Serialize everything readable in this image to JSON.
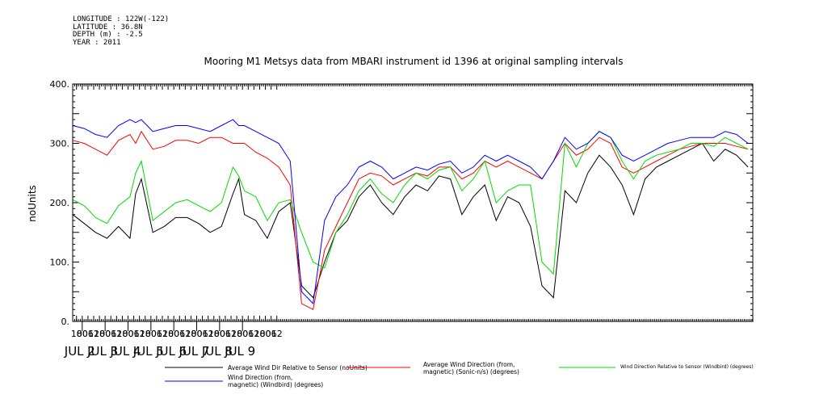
{
  "header": {
    "meta_lines": [
      "LONGITUDE : 122W(-122)",
      "LATITUDE : 36.8N",
      "DEPTH (m) : -2.5",
      "YEAR : 2011"
    ]
  },
  "chart_data": {
    "type": "line",
    "title": "Mooring M1 Metsys data from MBARI instrument id 1396 at original sampling intervals",
    "ylabel": "noUnits",
    "ylim": [
      0,
      400
    ],
    "yticks": [
      0,
      100,
      200,
      300,
      400
    ],
    "ytick_labels": [
      "0.",
      "100.",
      "200.",
      "300.",
      "400."
    ],
    "x": [
      0,
      12,
      24,
      36,
      48,
      60,
      66,
      72,
      84,
      96,
      108,
      120,
      132,
      144,
      156,
      168,
      174,
      180,
      192,
      204,
      216,
      228,
      240,
      252,
      264,
      276,
      288,
      300,
      312,
      324,
      336,
      348,
      360,
      372,
      384,
      396,
      408,
      420,
      432,
      444,
      456,
      468,
      480,
      492,
      504,
      516,
      528,
      540,
      552,
      564,
      576,
      588,
      600,
      612,
      624,
      636,
      648,
      660,
      672,
      684,
      696,
      708
    ],
    "x_units": "hours since JUL 1 14:00",
    "xlim": [
      0,
      713
    ],
    "xtick_labels": [
      "18",
      "00",
      "06",
      "12",
      "18",
      "00",
      "06",
      "12",
      "18",
      "00",
      "06",
      "12",
      "18",
      "00",
      "06",
      "12",
      "18",
      "00",
      "06",
      "12",
      "18",
      "00",
      "06",
      "12",
      "18",
      "00",
      "06",
      "12",
      "18",
      "00",
      "06",
      "12",
      "18",
      "00",
      "06",
      "12"
    ],
    "date_labels": [
      "JUL 2",
      "JUL 3",
      "JUL 4",
      "JUL 5",
      "JUL 6",
      "JUL 7",
      "JUL 8",
      "JUL 9"
    ],
    "series": [
      {
        "name": "Average Wind Dir Relative to Sensor (noUnits)",
        "color": "#000000",
        "values": [
          180,
          165,
          150,
          140,
          160,
          140,
          215,
          240,
          150,
          160,
          175,
          175,
          165,
          150,
          160,
          215,
          240,
          180,
          170,
          140,
          185,
          200,
          60,
          40,
          100,
          150,
          170,
          210,
          230,
          200,
          180,
          210,
          230,
          220,
          245,
          240,
          180,
          210,
          230,
          170,
          210,
          200,
          160,
          60,
          40,
          220,
          200,
          250,
          280,
          260,
          230,
          180,
          240,
          260,
          270,
          280,
          290,
          300,
          270,
          290,
          280,
          260
        ]
      },
      {
        "name": "Average Wind Direction (from, magnetic) (Sonic-n/s) (degrees)",
        "color": "#ff0000",
        "values": [
          305,
          300,
          290,
          280,
          305,
          315,
          300,
          320,
          290,
          295,
          305,
          305,
          300,
          310,
          310,
          300,
          300,
          300,
          285,
          275,
          260,
          230,
          30,
          20,
          120,
          160,
          200,
          240,
          250,
          245,
          230,
          240,
          250,
          245,
          260,
          260,
          240,
          250,
          270,
          260,
          270,
          260,
          250,
          240,
          270,
          300,
          280,
          290,
          310,
          300,
          260,
          250,
          260,
          270,
          280,
          290,
          295,
          300,
          300,
          300,
          295,
          290
        ]
      },
      {
        "name": "Wind Direction Relative to Sensor (Windbird) (degrees)",
        "color": "#00dd00",
        "values": [
          205,
          195,
          175,
          165,
          195,
          210,
          250,
          270,
          170,
          185,
          200,
          205,
          195,
          185,
          200,
          260,
          245,
          220,
          210,
          170,
          200,
          205,
          150,
          100,
          90,
          150,
          180,
          220,
          240,
          215,
          200,
          230,
          250,
          240,
          255,
          260,
          220,
          240,
          270,
          200,
          220,
          230,
          230,
          100,
          80,
          300,
          260,
          300,
          320,
          310,
          270,
          240,
          270,
          280,
          285,
          290,
          300,
          300,
          295,
          310,
          300,
          290
        ]
      },
      {
        "name": "Wind Direction (from, magnetic) (Windbird) (degrees)",
        "color": "#0000ff",
        "values": [
          330,
          325,
          315,
          310,
          330,
          340,
          335,
          340,
          320,
          325,
          330,
          330,
          325,
          320,
          330,
          340,
          330,
          330,
          320,
          310,
          300,
          270,
          50,
          30,
          170,
          210,
          230,
          260,
          270,
          260,
          240,
          250,
          260,
          255,
          265,
          270,
          250,
          260,
          280,
          270,
          280,
          270,
          260,
          240,
          270,
          310,
          290,
          300,
          320,
          310,
          280,
          270,
          280,
          290,
          300,
          305,
          310,
          310,
          310,
          320,
          315,
          300
        ]
      }
    ],
    "legend": [
      {
        "label": "Average Wind Dir Relative to Sensor (noUnits)",
        "color": "#000000"
      },
      {
        "label": "Average Wind Direction (from,\nmagnetic) (Sonic-n/s) (degrees)",
        "color": "#ff0000"
      },
      {
        "label": "Wind Direction Relative to Sensor (Windbird) (degrees)",
        "color": "#00dd00"
      },
      {
        "label": "Wind Direction (from,\nmagnetic) (Windbird) (degrees)",
        "color": "#0000ff"
      }
    ],
    "legend_placement": "bottom",
    "grid": false
  }
}
